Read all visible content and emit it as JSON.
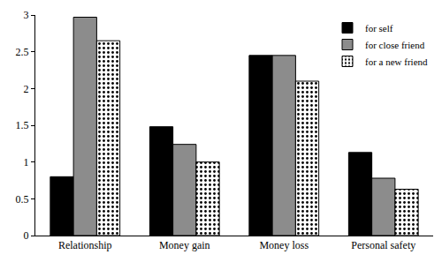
{
  "chart_data": {
    "type": "bar",
    "categories": [
      "Relationship",
      "Money gain",
      "Money loss",
      "Personal safety"
    ],
    "series": [
      {
        "name": "for self",
        "color": "#000000",
        "values": [
          0.8,
          1.48,
          2.45,
          1.13
        ]
      },
      {
        "name": "for close friend",
        "color": "#8c8c8c",
        "values": [
          2.97,
          1.24,
          2.45,
          0.78
        ]
      },
      {
        "name": "for a new friend",
        "color": "#ffffff",
        "marker": "dots",
        "values": [
          2.65,
          1.0,
          2.1,
          0.63
        ]
      }
    ],
    "ylim": [
      0,
      3
    ],
    "yticks": [
      0,
      0.5,
      1,
      1.5,
      2,
      2.5,
      3
    ],
    "grid": false,
    "legend": "top right"
  }
}
